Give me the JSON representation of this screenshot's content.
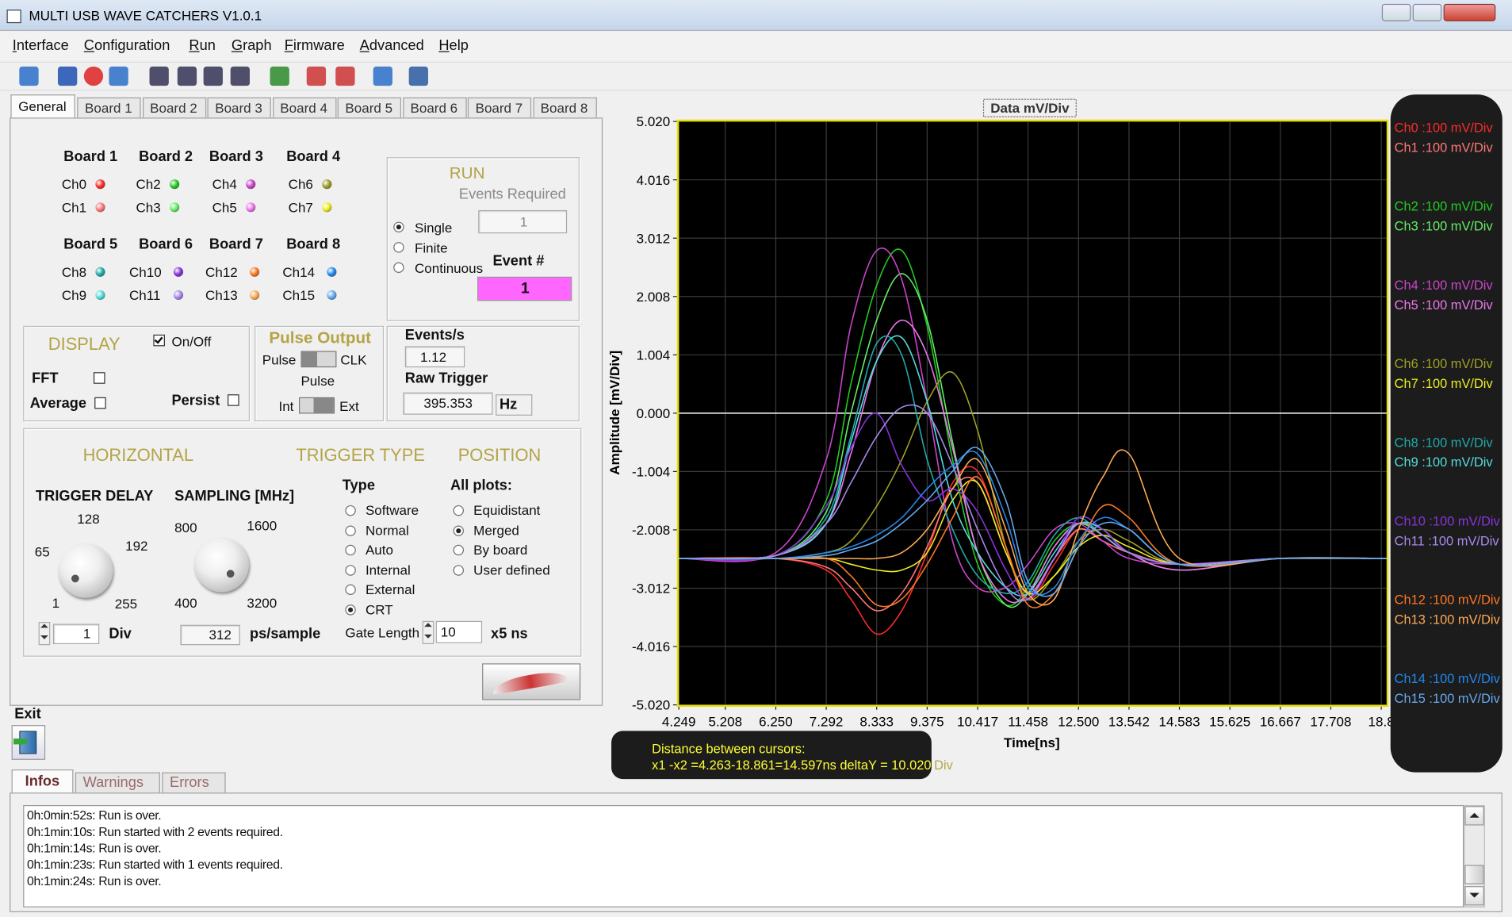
{
  "window": {
    "title": "MULTI USB WAVE CATCHERS V1.0.1"
  },
  "menu": [
    "Interface",
    "Configuration",
    "Run",
    "Graph",
    "Firmware",
    "Advanced",
    "Help"
  ],
  "tabs": [
    "General",
    "Board 1",
    "Board 2",
    "Board 3",
    "Board 4",
    "Board 5",
    "Board 6",
    "Board 7",
    "Board 8"
  ],
  "boards": [
    {
      "title": "Board 1",
      "channels": [
        "Ch0",
        "Ch1"
      ]
    },
    {
      "title": "Board 2",
      "channels": [
        "Ch2",
        "Ch3"
      ]
    },
    {
      "title": "Board 3",
      "channels": [
        "Ch4",
        "Ch5"
      ]
    },
    {
      "title": "Board 4",
      "channels": [
        "Ch6",
        "Ch7"
      ]
    },
    {
      "title": "Board 5",
      "channels": [
        "Ch8",
        "Ch9"
      ]
    },
    {
      "title": "Board 6",
      "channels": [
        "Ch10",
        "Ch11"
      ]
    },
    {
      "title": "Board 7",
      "channels": [
        "Ch12",
        "Ch13"
      ]
    },
    {
      "title": "Board 8",
      "channels": [
        "Ch14",
        "Ch15"
      ]
    }
  ],
  "run": {
    "title": "RUN",
    "events_required_label": "Events Required",
    "events_required": 1,
    "modes": [
      "Single",
      "Finite",
      "Continuous"
    ],
    "selected_mode": 0,
    "event_label": "Event #",
    "event": 1
  },
  "display": {
    "title": "DISPLAY",
    "on_off": "On/Off",
    "on": true,
    "fft": "FFT",
    "average": "Average",
    "persist": "Persist"
  },
  "pulse_output": {
    "title": "Pulse Output",
    "pulse": "Pulse",
    "clk": "CLK",
    "pulse_2": "Pulse",
    "int": "Int",
    "ext": "Ext"
  },
  "rates": {
    "events_label": "Events/s",
    "events": 1.12,
    "raw_trigger_label": "Raw Trigger",
    "raw_trigger": 395.353,
    "unit": "Hz"
  },
  "horizontal": {
    "title": "HORIZONTAL",
    "trigger_delay": {
      "label": "TRIGGER DELAY",
      "dial": [
        1,
        65,
        128,
        192,
        255
      ],
      "value": 1,
      "unit": "Div"
    },
    "sampling": {
      "label": "SAMPLING [MHz]",
      "dial": [
        400,
        800,
        1600,
        3200
      ],
      "value": 312,
      "unit": "ps/sample"
    }
  },
  "trigger_type": {
    "title": "TRIGGER TYPE",
    "type_label": "Type",
    "types": [
      "Software",
      "Normal",
      "Auto",
      "Internal",
      "External",
      "CRT"
    ],
    "selected": 5,
    "gate_length_label": "Gate Length",
    "gate_length": 10,
    "gate_unit": "x5 ns"
  },
  "position": {
    "title": "POSITION",
    "all_plots": "All plots:",
    "options": [
      "Equidistant",
      "Merged",
      "By board",
      "User defined"
    ],
    "selected": 1
  },
  "exit": "Exit",
  "chart_data": {
    "type": "line",
    "title": "Data mV/Div",
    "xlabel": "Time[ns]",
    "ylabel": "Amplitude [mV/Div]",
    "xlim": [
      4.249,
      18.861
    ],
    "ylim": [
      -5.02,
      5.02
    ],
    "xticks": [
      4.249,
      5.208,
      {
        "value": 6.25,
        "label": "6.250"
      },
      7.292,
      8.333,
      9.375,
      10.417,
      11.458,
      {
        "value": 12.5,
        "label": "12.500"
      },
      13.542,
      14.583,
      15.625,
      16.667,
      17.708,
      {
        "value": 18.75,
        "label": "18.8"
      }
    ],
    "yticks": [
      {
        "value": 5.02,
        "label": "5.020"
      },
      4.016,
      3.012,
      2.008,
      1.004,
      {
        "value": 0,
        "label": "0.000"
      },
      -1.004,
      -2.008,
      -3.012,
      -4.016,
      {
        "value": -5.02,
        "label": "-5.020"
      }
    ],
    "grid": true,
    "x": [
      4.249,
      6.25,
      7.292,
      7.8,
      8.333,
      8.85,
      9.375,
      9.9,
      10.417,
      11.0,
      11.458,
      12.0,
      12.5,
      13.0,
      13.542,
      14.583,
      16.667,
      18.861
    ],
    "series": [
      {
        "name": "Ch0 :100 mV/Div",
        "color": "#ff2a2a",
        "values": [
          -2.5,
          -2.5,
          -2.7,
          -3.2,
          -3.8,
          -3.4,
          -2.4,
          -1.2,
          -1.0,
          -2.3,
          -3.2,
          -2.6,
          -2.0,
          -2.2,
          -2.4,
          -2.6,
          -2.5,
          -2.5
        ]
      },
      {
        "name": "Ch1 :100 mV/Div",
        "color": "#ff7878",
        "values": [
          -2.5,
          -2.5,
          -2.65,
          -3.0,
          -3.4,
          -3.1,
          -2.3,
          -1.3,
          -1.2,
          -2.4,
          -3.1,
          -2.5,
          -2.0,
          -2.2,
          -2.4,
          -2.6,
          -2.5,
          -2.5
        ]
      },
      {
        "name": "Ch2 :100 mV/Div",
        "color": "#22cc22",
        "values": [
          -2.5,
          -2.45,
          -1.5,
          0.5,
          2.2,
          2.8,
          1.5,
          -0.8,
          -2.6,
          -3.3,
          -3.0,
          -2.2,
          -1.9,
          -2.1,
          -2.4,
          -2.7,
          -2.5,
          -2.5
        ]
      },
      {
        "name": "Ch3 :100 mV/Div",
        "color": "#66ee66",
        "values": [
          -2.5,
          -2.45,
          -1.7,
          0.0,
          1.6,
          2.4,
          1.6,
          -0.5,
          -2.4,
          -3.3,
          -3.1,
          -2.3,
          -1.9,
          -2.1,
          -2.4,
          -2.6,
          -2.5,
          -2.5
        ]
      },
      {
        "name": "Ch4 :100 mV/Div",
        "color": "#cc44cc",
        "values": [
          -2.5,
          -2.4,
          -0.8,
          1.5,
          2.8,
          2.3,
          0.2,
          -2.2,
          -3.0,
          -3.0,
          -2.6,
          -2.0,
          -1.9,
          -2.2,
          -2.5,
          -2.6,
          -2.5,
          -2.5
        ]
      },
      {
        "name": "Ch5 :100 mV/Div",
        "color": "#ee77ee",
        "values": [
          -2.5,
          -2.45,
          -1.9,
          -0.7,
          0.9,
          1.6,
          1.0,
          -0.6,
          -2.4,
          -3.2,
          -3.1,
          -2.3,
          -1.9,
          -2.0,
          -2.4,
          -2.7,
          -2.5,
          -2.5
        ]
      },
      {
        "name": "Ch6 :100 mV/Div",
        "color": "#a0a028",
        "values": [
          -2.5,
          -2.5,
          -2.4,
          -2.2,
          -1.6,
          -0.8,
          0.2,
          0.7,
          -0.3,
          -2.3,
          -3.2,
          -2.8,
          -2.2,
          -2.0,
          -2.2,
          -2.6,
          -2.5,
          -2.5
        ]
      },
      {
        "name": "Ch7 :100 mV/Div",
        "color": "#eeee22",
        "values": [
          -2.5,
          -2.5,
          -2.5,
          -2.6,
          -2.7,
          -2.7,
          -2.4,
          -1.5,
          -1.2,
          -2.4,
          -3.1,
          -2.8,
          -2.3,
          -2.1,
          -2.3,
          -2.6,
          -2.5,
          -2.5
        ]
      },
      {
        "name": "Ch8 :100 mV/Div",
        "color": "#22aaaa",
        "values": [
          -2.5,
          -2.45,
          -1.8,
          -0.4,
          1.2,
          1.0,
          -0.8,
          -2.0,
          -2.8,
          -3.1,
          -2.9,
          -2.1,
          -1.8,
          -2.1,
          -2.4,
          -2.6,
          -2.5,
          -2.5
        ]
      },
      {
        "name": "Ch9 :100 mV/Div",
        "color": "#55dddd",
        "values": [
          -2.5,
          -2.45,
          -1.9,
          -0.5,
          0.9,
          1.3,
          0.2,
          -1.5,
          -2.4,
          -3.0,
          -3.1,
          -2.4,
          -1.9,
          -2.0,
          -2.4,
          -2.6,
          -2.5,
          -2.5
        ]
      },
      {
        "name": "Ch10 :100 mV/Div",
        "color": "#8833dd",
        "values": [
          -2.5,
          -2.45,
          -1.6,
          -0.6,
          0.0,
          -0.9,
          -1.5,
          -1.3,
          -1.7,
          -2.7,
          -3.2,
          -2.5,
          -1.8,
          -2.0,
          -2.4,
          -2.6,
          -2.5,
          -2.5
        ]
      },
      {
        "name": "Ch11 :100 mV/Div",
        "color": "#aa88ee",
        "values": [
          -2.5,
          -2.45,
          -1.9,
          -1.2,
          -0.4,
          0.1,
          0.0,
          -0.9,
          -2.0,
          -3.0,
          -3.2,
          -2.5,
          -1.9,
          -2.1,
          -2.4,
          -2.6,
          -2.5,
          -2.5
        ]
      },
      {
        "name": "Ch12 :100 mV/Div",
        "color": "#ff7722",
        "values": [
          -2.5,
          -2.5,
          -2.5,
          -2.8,
          -3.3,
          -3.2,
          -2.6,
          -1.8,
          -1.1,
          -2.3,
          -3.3,
          -3.1,
          -2.3,
          -1.6,
          -1.8,
          -2.6,
          -2.5,
          -2.5
        ]
      },
      {
        "name": "Ch13 :100 mV/Div",
        "color": "#ffaa55",
        "values": [
          -2.5,
          -2.5,
          -2.5,
          -2.5,
          -2.5,
          -2.4,
          -2.0,
          -1.3,
          -0.8,
          -2.0,
          -3.1,
          -3.2,
          -2.0,
          -1.1,
          -0.7,
          -2.5,
          -2.5,
          -2.5
        ]
      },
      {
        "name": "Ch14 :100 mV/Div",
        "color": "#2288ee",
        "values": [
          -2.5,
          -2.5,
          -2.4,
          -2.3,
          -2.1,
          -1.8,
          -1.3,
          -0.9,
          -0.7,
          -1.8,
          -3.0,
          -3.0,
          -2.2,
          -1.8,
          -2.0,
          -2.6,
          -2.5,
          -2.5
        ]
      },
      {
        "name": "Ch15 :100 mV/Div",
        "color": "#66aaee",
        "values": [
          -2.5,
          -2.5,
          -2.45,
          -2.35,
          -2.2,
          -1.9,
          -1.5,
          -1.0,
          -0.6,
          -1.5,
          -2.9,
          -3.1,
          -2.3,
          -1.9,
          -2.0,
          -2.6,
          -2.5,
          -2.5
        ]
      }
    ]
  },
  "cursor": {
    "heading": "Distance between cursors:",
    "text": "x1 -x2 =4.263-18.861=14.597ns deltaY = 10.020",
    "unit": "Div"
  },
  "log": {
    "tabs": [
      "Infos",
      "Warnings",
      "Errors"
    ],
    "lines": [
      "0h:0min:52s: Run is over.",
      "0h:1min:10s: Run started with 2 events required.",
      "0h:1min:14s: Run is over.",
      "0h:1min:23s: Run started with 1 events required.",
      "0h:1min:24s: Run is over."
    ]
  }
}
